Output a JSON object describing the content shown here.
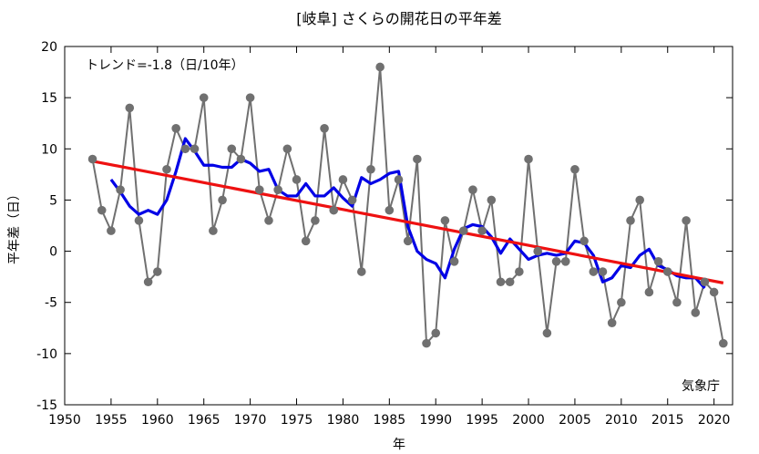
{
  "chart_data": {
    "type": "line",
    "title": "[岐阜] さくらの開花日の平年差",
    "xlabel": "年",
    "ylabel": "平年差（日）",
    "xlim": [
      1950,
      2022
    ],
    "ylim": [
      -15,
      20
    ],
    "xticks": [
      1950,
      1955,
      1960,
      1965,
      1970,
      1975,
      1980,
      1985,
      1990,
      1995,
      2000,
      2005,
      2010,
      2015,
      2020
    ],
    "yticks": [
      -15,
      -10,
      -5,
      0,
      5,
      10,
      15,
      20
    ],
    "grid": false,
    "series": [
      {
        "role": "annual",
        "color": "#707070",
        "x": [
          1953,
          1954,
          1955,
          1956,
          1957,
          1958,
          1959,
          1960,
          1961,
          1962,
          1963,
          1964,
          1965,
          1966,
          1967,
          1968,
          1969,
          1970,
          1971,
          1972,
          1973,
          1974,
          1975,
          1976,
          1977,
          1978,
          1979,
          1980,
          1981,
          1982,
          1983,
          1984,
          1985,
          1986,
          1987,
          1988,
          1989,
          1990,
          1991,
          1992,
          1993,
          1994,
          1995,
          1996,
          1997,
          1998,
          1999,
          2000,
          2001,
          2002,
          2003,
          2004,
          2005,
          2006,
          2007,
          2008,
          2009,
          2010,
          2011,
          2012,
          2013,
          2014,
          2015,
          2016,
          2017,
          2018,
          2019,
          2020,
          2021
        ],
        "values": [
          9,
          4,
          2,
          6,
          14,
          3,
          -3,
          -2,
          8,
          12,
          10,
          10,
          15,
          2,
          5,
          10,
          9,
          15,
          6,
          3,
          6,
          10,
          7,
          1,
          3,
          12,
          4,
          7,
          5,
          -2,
          8,
          18,
          4,
          7,
          1,
          9,
          -9,
          -8,
          3,
          -1,
          2,
          6,
          2,
          5,
          -3,
          -3,
          -2,
          9,
          0,
          -8,
          -1,
          -1,
          8,
          1,
          -2,
          -2,
          -7,
          -5,
          3,
          5,
          -4,
          -1,
          -2,
          -5,
          3,
          -6,
          -3,
          -4,
          -9
        ]
      },
      {
        "role": "5-year running mean",
        "color": "#0000e6",
        "x": [
          1955,
          1956,
          1957,
          1958,
          1959,
          1960,
          1961,
          1962,
          1963,
          1964,
          1965,
          1966,
          1967,
          1968,
          1969,
          1970,
          1971,
          1972,
          1973,
          1974,
          1975,
          1976,
          1977,
          1978,
          1979,
          1980,
          1981,
          1982,
          1983,
          1984,
          1985,
          1986,
          1987,
          1988,
          1989,
          1990,
          1991,
          1992,
          1993,
          1994,
          1995,
          1996,
          1997,
          1998,
          1999,
          2000,
          2001,
          2002,
          2003,
          2004,
          2005,
          2006,
          2007,
          2008,
          2009,
          2010,
          2011,
          2012,
          2013,
          2014,
          2015,
          2016,
          2017,
          2018,
          2019
        ],
        "values": [
          7.0,
          5.8,
          4.4,
          3.6,
          4.0,
          3.6,
          5.0,
          7.8,
          11.0,
          9.8,
          8.4,
          8.4,
          8.2,
          8.2,
          9.0,
          8.6,
          7.8,
          8.0,
          6.0,
          5.4,
          5.4,
          6.6,
          5.4,
          5.4,
          6.2,
          5.2,
          4.4,
          7.2,
          6.6,
          7.0,
          7.6,
          7.8,
          2.4,
          0.0,
          -0.8,
          -1.2,
          -2.6,
          0.2,
          2.2,
          2.6,
          2.4,
          1.4,
          -0.2,
          1.2,
          0.2,
          -0.8,
          -0.4,
          -0.2,
          -0.4,
          -0.2,
          1.0,
          0.8,
          -0.4,
          -3.0,
          -2.6,
          -1.4,
          -1.6,
          -0.4,
          0.2,
          -1.4,
          -1.8,
          -2.4,
          -2.6,
          -2.6,
          -3.6
        ]
      },
      {
        "role": "trend",
        "color": "#ee1111",
        "x": [
          1953,
          2021
        ],
        "values": [
          8.8,
          -3.1
        ]
      }
    ],
    "annotations": {
      "trend": "トレンド=-1.8（日/10年）",
      "credit": "気象庁"
    }
  }
}
